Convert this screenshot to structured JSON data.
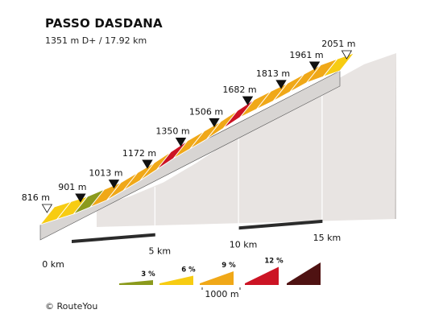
{
  "header": {
    "title": "PASSO DASDANA",
    "subtitle": "1351 m D+ / 17.92 km"
  },
  "footer": {
    "copyright": "© RouteYou"
  },
  "colors": {
    "gradient_3": "#8b9a1c",
    "gradient_6": "#f7cc12",
    "gradient_9": "#f0a818",
    "gradient_12": "#cc1424",
    "gradient_max": "#4f1212",
    "wall": "#e8e4e2",
    "side": "#d8d5d3",
    "base": "#2b2b2b"
  },
  "chart_data": {
    "type": "area",
    "title": "PASSO DASDANA",
    "subtitle": "1351 m D+ / 17.92 km",
    "xlabel": "",
    "ylabel": "",
    "x_unit": "km",
    "y_unit": "m",
    "xlim": [
      0,
      17.92
    ],
    "ylim": [
      700,
      2100
    ],
    "start_elevation": 816,
    "end_elevation": 2051,
    "profile": [
      {
        "km": 0.0,
        "elevation": 816
      },
      {
        "km": 2.0,
        "elevation": 901
      },
      {
        "km": 4.0,
        "elevation": 1013
      },
      {
        "km": 6.0,
        "elevation": 1172
      },
      {
        "km": 8.0,
        "elevation": 1350
      },
      {
        "km": 10.0,
        "elevation": 1506
      },
      {
        "km": 12.0,
        "elevation": 1682
      },
      {
        "km": 14.0,
        "elevation": 1813
      },
      {
        "km": 16.0,
        "elevation": 1961
      },
      {
        "km": 17.92,
        "elevation": 2051
      }
    ],
    "segment_gradients": [
      6,
      6,
      3,
      9,
      9,
      9,
      9,
      12,
      9,
      9,
      9,
      12,
      9,
      9,
      9,
      9,
      9,
      6
    ],
    "elevation_labels": [
      {
        "km": 0.0,
        "label": "816 m",
        "marker": "open"
      },
      {
        "km": 2.0,
        "label": "901 m",
        "marker": "filled"
      },
      {
        "km": 4.0,
        "label": "1013 m",
        "marker": "filled"
      },
      {
        "km": 6.0,
        "label": "1172 m",
        "marker": "filled"
      },
      {
        "km": 8.0,
        "label": "1350 m",
        "marker": "filled"
      },
      {
        "km": 10.0,
        "label": "1506 m",
        "marker": "filled"
      },
      {
        "km": 12.0,
        "label": "1682 m",
        "marker": "filled"
      },
      {
        "km": 14.0,
        "label": "1813 m",
        "marker": "filled"
      },
      {
        "km": 16.0,
        "label": "1961 m",
        "marker": "filled"
      },
      {
        "km": 17.92,
        "label": "2051 m",
        "marker": "open"
      }
    ],
    "distance_ticks": [
      {
        "km": 0,
        "label": "0 km"
      },
      {
        "km": 5,
        "label": "5 km"
      },
      {
        "km": 10,
        "label": "10 km"
      },
      {
        "km": 15,
        "label": "15 km"
      }
    ],
    "legend": {
      "position": "bottom-center",
      "items": [
        {
          "label": "3 %",
          "gradient": 3
        },
        {
          "label": "6 %",
          "gradient": 6
        },
        {
          "label": "9 %",
          "gradient": 9
        },
        {
          "label": "12 %",
          "gradient": 12
        },
        {
          "label": "",
          "gradient": 15
        }
      ],
      "scale_label": "1000 m"
    }
  }
}
